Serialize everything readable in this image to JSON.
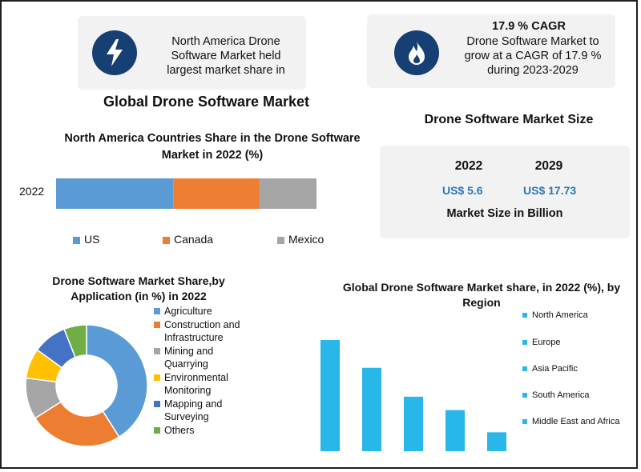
{
  "header": {
    "left_card": "North America Drone Software Market held largest market share in",
    "right_card_title": "17.9 % CAGR",
    "right_card_text": "Drone Software Market to grow at a CAGR of 17.9 % during 2023-2029",
    "main_title": "Global Drone Software Market",
    "market_size_title": "Drone Software Market Size"
  },
  "market_size": {
    "year_a": "2022",
    "year_b": "2029",
    "value_a": "US$ 5.6",
    "value_b": "US$ 17.73",
    "caption": "Market Size in Billion"
  },
  "colors": {
    "navy": "#163f73",
    "us": "#5b9bd5",
    "canada": "#ed7d31",
    "mexico": "#a5a5a5",
    "cyan": "#29b6e8"
  },
  "chart_data": [
    {
      "type": "bar",
      "orientation": "horizontal-stacked",
      "title": "North America Countries Share in the Drone Software Market in 2022 (%)",
      "categories": [
        "2022"
      ],
      "series": [
        {
          "name": "US",
          "values": [
            45
          ],
          "color": "#5b9bd5"
        },
        {
          "name": "Canada",
          "values": [
            33
          ],
          "color": "#ed7d31"
        },
        {
          "name": "Mexico",
          "values": [
            22
          ],
          "color": "#a5a5a5"
        }
      ],
      "legend": "bottom"
    },
    {
      "type": "pie",
      "variant": "donut",
      "title": "Drone Software Market Share,by Application (in %) in 2022",
      "labels": [
        "Agriculture",
        "Construction and Infrastructure",
        "Mining and Quarrying",
        "Environmental Monitoring",
        "Mapping and Surveying",
        "Others"
      ],
      "label_lines": [
        [
          "Agriculture"
        ],
        [
          "Construction and",
          "Infrastructure"
        ],
        [
          "Mining and",
          "Quarrying"
        ],
        [
          "Environmental",
          "Monitoring"
        ],
        [
          "Mapping and",
          "Surveying"
        ],
        [
          "Others"
        ]
      ],
      "values": [
        41,
        25,
        11,
        8,
        9,
        6
      ],
      "colors": [
        "#5b9bd5",
        "#ed7d31",
        "#a5a5a5",
        "#ffc000",
        "#4472c4",
        "#70ad47"
      ],
      "legend": "right"
    },
    {
      "type": "bar",
      "title": "Global Drone Software Market share, in 2022 (%), by Region",
      "categories": [
        "North America",
        "Europe",
        "Asia Pacific",
        "South America",
        "Middle East and Africa"
      ],
      "values": [
        100,
        75,
        49,
        37,
        17
      ],
      "color": "#29b6e8",
      "legend": "right"
    }
  ]
}
